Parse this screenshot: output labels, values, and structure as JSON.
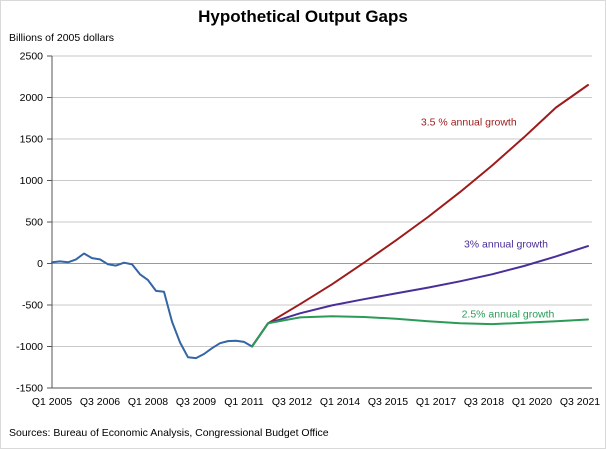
{
  "chart_data": {
    "type": "line",
    "title": "Hypothetical Output Gaps",
    "y_axis_label": "Billions of 2005  dollars",
    "source_note": "Sources: Bureau of Economic Analysis, Congressional Budget Office",
    "ylim": [
      -1500,
      2500
    ],
    "y_tick_step": 500,
    "x_total_quarters": 67.5,
    "x_tick_step_quarters": 6,
    "x_tick_labels": [
      "Q1 2005",
      "Q3 2006",
      "Q1 2008",
      "Q3 2009",
      "Q1 2011",
      "Q3 2012",
      "Q1 2014",
      "Q3 2015",
      "Q1 2017",
      "Q3 2018",
      "Q1 2020",
      "Q3 2021"
    ],
    "grid": "horizontal",
    "legend_position": "inline-annotations",
    "colors": {
      "actual": "#3465A4",
      "growth_3_5": "#9E1B1B",
      "growth_3": "#4A2E99",
      "growth_2_5": "#2B9B57",
      "gridline": "#C9C9C9",
      "zero_line": "#999999",
      "axis": "#555555"
    },
    "series": [
      {
        "name": "actual-output-gap",
        "color": "#3465A4",
        "points": [
          [
            0,
            15
          ],
          [
            1,
            25
          ],
          [
            2,
            15
          ],
          [
            3,
            50
          ],
          [
            4,
            120
          ],
          [
            5,
            65
          ],
          [
            6,
            50
          ],
          [
            7,
            -10
          ],
          [
            8,
            -25
          ],
          [
            9,
            10
          ],
          [
            10,
            -10
          ],
          [
            11,
            -130
          ],
          [
            12,
            -200
          ],
          [
            13,
            -330
          ],
          [
            14,
            -340
          ],
          [
            15,
            -700
          ],
          [
            16,
            -950
          ],
          [
            17,
            -1130
          ],
          [
            18,
            -1140
          ],
          [
            19,
            -1090
          ],
          [
            20,
            -1020
          ],
          [
            21,
            -960
          ],
          [
            22,
            -935
          ],
          [
            23,
            -930
          ],
          [
            24,
            -945
          ],
          [
            25,
            -1000
          ]
        ]
      },
      {
        "name": "3.5-percent-annual-growth",
        "color": "#9E1B1B",
        "points": [
          [
            25,
            -1000
          ],
          [
            26,
            -860
          ],
          [
            27,
            -720
          ],
          [
            31,
            -490
          ],
          [
            35,
            -250
          ],
          [
            39,
            10
          ],
          [
            43,
            280
          ],
          [
            47,
            560
          ],
          [
            51,
            860
          ],
          [
            55,
            1180
          ],
          [
            59,
            1520
          ],
          [
            63,
            1880
          ],
          [
            67,
            2150
          ]
        ]
      },
      {
        "name": "3-percent-annual-growth",
        "color": "#4A2E99",
        "points": [
          [
            25,
            -1000
          ],
          [
            26,
            -860
          ],
          [
            27,
            -720
          ],
          [
            31,
            -600
          ],
          [
            35,
            -505
          ],
          [
            39,
            -430
          ],
          [
            43,
            -360
          ],
          [
            47,
            -290
          ],
          [
            51,
            -215
          ],
          [
            55,
            -130
          ],
          [
            59,
            -30
          ],
          [
            63,
            85
          ],
          [
            67,
            210
          ]
        ]
      },
      {
        "name": "2.5-percent-annual-growth",
        "color": "#2B9B57",
        "points": [
          [
            25,
            -1000
          ],
          [
            26,
            -860
          ],
          [
            27,
            -720
          ],
          [
            31,
            -650
          ],
          [
            35,
            -635
          ],
          [
            39,
            -645
          ],
          [
            43,
            -665
          ],
          [
            47,
            -695
          ],
          [
            51,
            -720
          ],
          [
            55,
            -730
          ],
          [
            59,
            -715
          ],
          [
            63,
            -695
          ],
          [
            67,
            -675
          ]
        ]
      }
    ],
    "annotations": [
      {
        "text": "3.5 % annual growth",
        "color": "#9E1B1B",
        "q": 52.1,
        "value": 1705
      },
      {
        "text": "3% annual growth",
        "color": "#4A2E99",
        "q": 56.75,
        "value": 235
      },
      {
        "text": "2.5% annual growth",
        "color": "#2B9B57",
        "q": 57.0,
        "value": -608
      }
    ]
  }
}
